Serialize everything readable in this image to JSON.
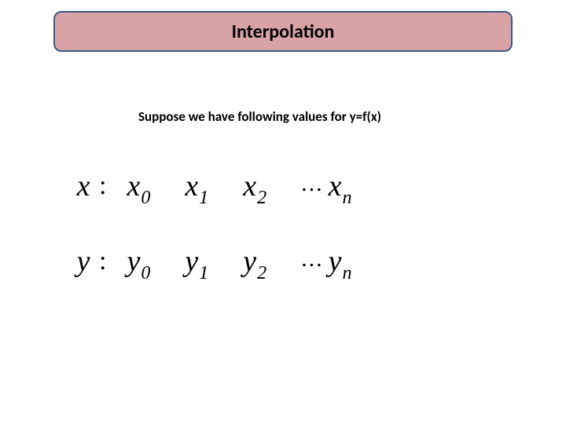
{
  "title": "Interpolation",
  "subtitle": "Suppose we have following values for y=f(x)",
  "rows": [
    {
      "var": "x",
      "terms": [
        "x",
        "x",
        "x",
        "x"
      ],
      "subs": [
        "0",
        "1",
        "2",
        "n"
      ]
    },
    {
      "var": "y",
      "terms": [
        "y",
        "y",
        "y",
        "y"
      ],
      "subs": [
        "0",
        "1",
        "2",
        "n"
      ]
    }
  ],
  "dots": "...",
  "colors": {
    "title_bg": "#d9a3a5",
    "title_border": "#3a5a8c",
    "text": "#000000",
    "background": "#ffffff"
  }
}
